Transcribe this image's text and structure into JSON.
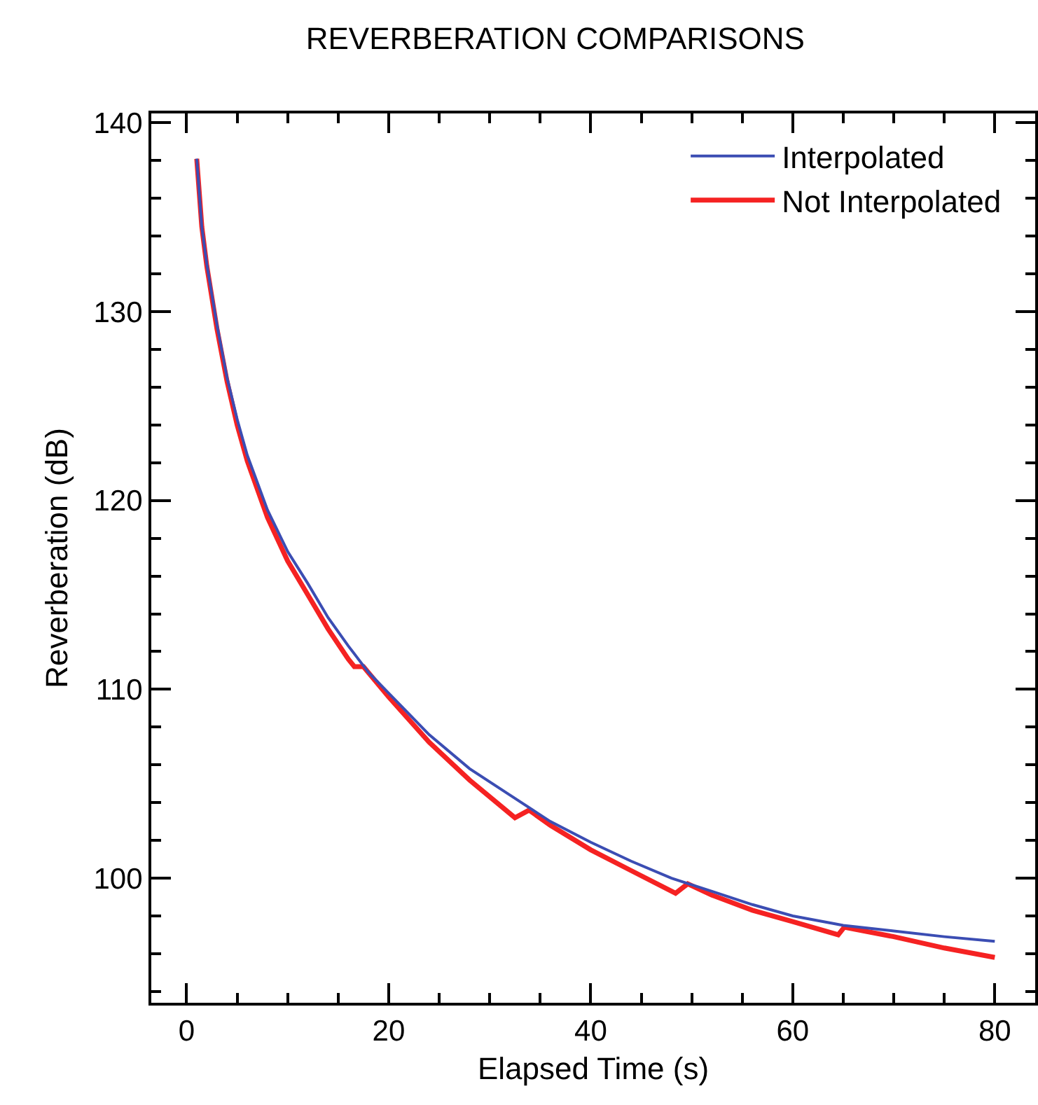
{
  "chart_data": {
    "type": "line",
    "title": "REVERBERATION COMPARISONS",
    "xlabel": "Elapsed Time (s)",
    "ylabel": "Reverberation (dB)",
    "xlim": [
      -3.5,
      84
    ],
    "ylim": [
      93.4,
      140.5
    ],
    "xticks": [
      0,
      {
        "value": 5,
        "label": null
      },
      {
        "value": 10,
        "label": null
      },
      {
        "value": 15,
        "label": null
      },
      20,
      {
        "value": 25,
        "label": null
      },
      {
        "value": 30,
        "label": null
      },
      {
        "value": 35,
        "label": null
      },
      40,
      {
        "value": 45,
        "label": null
      },
      {
        "value": 50,
        "label": null
      },
      {
        "value": 55,
        "label": null
      },
      60,
      {
        "value": 65,
        "label": null
      },
      {
        "value": 70,
        "label": null
      },
      {
        "value": 75,
        "label": null
      },
      80
    ],
    "yticks": [
      {
        "value": 94,
        "label": null
      },
      {
        "value": 96,
        "label": null
      },
      {
        "value": 98,
        "label": null
      },
      100,
      {
        "value": 102,
        "label": null
      },
      {
        "value": 104,
        "label": null
      },
      {
        "value": 106,
        "label": null
      },
      {
        "value": 108,
        "label": null
      },
      110,
      {
        "value": 112,
        "label": null
      },
      {
        "value": 114,
        "label": null
      },
      {
        "value": 116,
        "label": null
      },
      {
        "value": 118,
        "label": null
      },
      120,
      {
        "value": 122,
        "label": null
      },
      {
        "value": 124,
        "label": null
      },
      {
        "value": 126,
        "label": null
      },
      {
        "value": 128,
        "label": null
      },
      130,
      {
        "value": 132,
        "label": null
      },
      {
        "value": 134,
        "label": null
      },
      {
        "value": 136,
        "label": null
      },
      {
        "value": 138,
        "label": null
      },
      140
    ],
    "grid": false,
    "legend": "top right",
    "marker": "none",
    "line_style": "solid",
    "series": [
      {
        "name": "Interpolated",
        "color": "#3b4db3",
        "x": [
          1,
          1.5,
          2,
          3,
          4,
          5,
          6,
          8,
          10,
          12,
          14,
          16,
          18,
          20,
          24,
          28,
          32,
          36,
          40,
          44,
          48,
          52,
          56,
          60,
          64,
          65,
          70,
          75,
          80
        ],
        "values": [
          138.1,
          134.5,
          132.5,
          129.3,
          126.5,
          124.3,
          122.4,
          119.5,
          117.3,
          115.6,
          113.8,
          112.3,
          110.9,
          109.8,
          107.6,
          105.8,
          104.4,
          103.0,
          101.9,
          100.9,
          100.0,
          99.3,
          98.6,
          98.0,
          97.6,
          97.5,
          97.2,
          96.9,
          96.65
        ]
      },
      {
        "name": "Not Interpolated",
        "color": "#f52222",
        "x": [
          1,
          1.5,
          2,
          3,
          4,
          5,
          6,
          8,
          10,
          12,
          14,
          16,
          16.6,
          17.5,
          20,
          24,
          28,
          32.5,
          33.9,
          36,
          40,
          44,
          48.4,
          49.6,
          52,
          56,
          60,
          64.5,
          65.1,
          70,
          75,
          80
        ],
        "values": [
          138.1,
          134.5,
          132.4,
          129.1,
          126.3,
          124.0,
          122.1,
          119.1,
          116.8,
          115.0,
          113.2,
          111.6,
          111.2,
          111.2,
          109.6,
          107.2,
          105.2,
          103.2,
          103.6,
          102.8,
          101.5,
          100.4,
          99.2,
          99.7,
          99.1,
          98.3,
          97.7,
          97.0,
          97.4,
          96.9,
          96.3,
          95.8
        ]
      }
    ]
  }
}
